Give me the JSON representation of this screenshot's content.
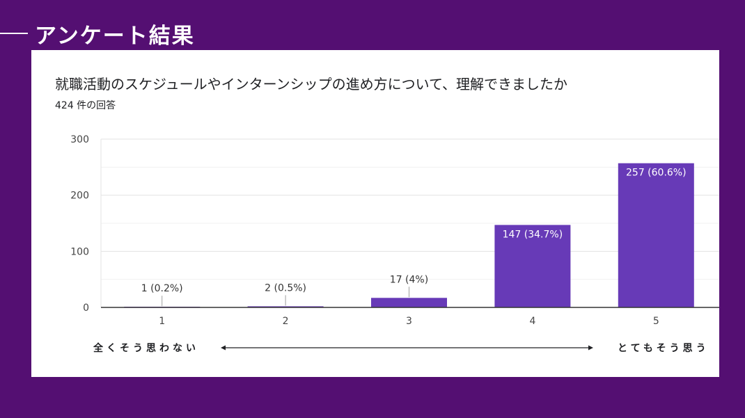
{
  "slide": {
    "title": "アンケート結果"
  },
  "card": {
    "question": "就職活動のスケジュールやインターンシップの進め方について、理解できましたか",
    "response_count": "424 件の回答"
  },
  "scale": {
    "left_label": "全くそう思わない",
    "right_label": "とてもそう思う"
  },
  "colors": {
    "background": "#540f72",
    "bar": "#673ab7",
    "card": "#ffffff"
  },
  "chart_data": {
    "type": "bar",
    "title": "就職活動のスケジュールやインターンシップの進め方について、理解できましたか",
    "categories": [
      "1",
      "2",
      "3",
      "4",
      "5"
    ],
    "values": [
      1,
      2,
      17,
      147,
      257
    ],
    "data_labels": [
      "1 (0.2%)",
      "2 (0.5%)",
      "17 (4%)",
      "147 (34.7%)",
      "257 (60.6%)"
    ],
    "y_ticks": [
      0,
      100,
      200,
      300
    ],
    "ylim": [
      0,
      300
    ],
    "xlabel": "",
    "ylabel": "",
    "grid": true
  }
}
